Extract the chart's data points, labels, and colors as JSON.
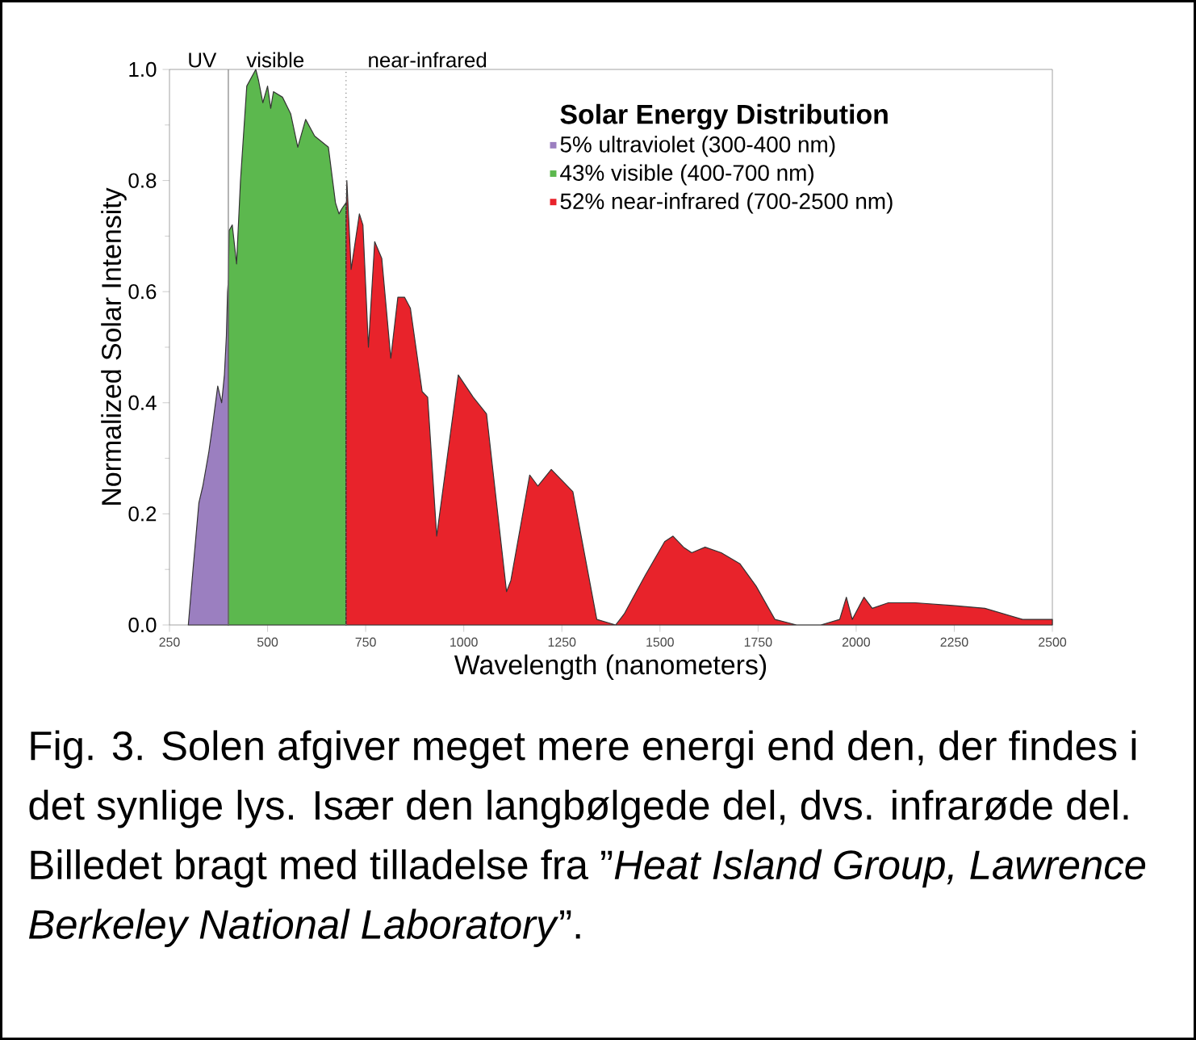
{
  "chart_data": {
    "type": "area",
    "xlabel": "Wavelength (nanometers)",
    "ylabel": "Normalized Solar Intensity",
    "legend_title": "Solar Energy Distribution",
    "legend": "top right",
    "xlim": [
      250,
      2500
    ],
    "ylim": [
      0,
      1.0
    ],
    "xticks": [
      250,
      500,
      750,
      1000,
      1250,
      1500,
      1750,
      2000,
      2250,
      2500
    ],
    "yticks": [
      {
        "value": 0,
        "label": "0.0"
      },
      {
        "value": 0.2,
        "label": "0.2"
      },
      {
        "value": 0.4,
        "label": "0.4"
      },
      {
        "value": 0.6,
        "label": "0.6"
      },
      {
        "value": 0.8,
        "label": "0.8"
      },
      {
        "value": 1.0,
        "label": "1.0"
      }
    ],
    "ref_lines": [
      {
        "axis": "x",
        "value": 400,
        "color": "#808080",
        "line_style": "solid"
      },
      {
        "axis": "x",
        "value": 700,
        "color": "#808080",
        "line_style": "dotted"
      }
    ],
    "series": [
      {
        "name": "5% ultraviolet (300-400 nm)",
        "color": "#9b7fc0",
        "x": [
          298,
          310,
          325,
          335,
          350,
          360,
          373,
          383,
          390,
          395,
          398,
          400
        ],
        "values": [
          0,
          0.1,
          0.22,
          0.25,
          0.31,
          0.36,
          0.43,
          0.4,
          0.45,
          0.52,
          0.6,
          0.62
        ]
      },
      {
        "name": "43% visible (400-700 nm)",
        "color": "#5cb84e",
        "x": [
          400,
          402,
          410,
          421,
          431,
          447,
          470,
          477,
          488,
          500,
          508,
          515,
          538,
          559,
          577,
          597,
          620,
          655,
          673,
          682,
          690,
          700
        ],
        "values": [
          0.62,
          0.71,
          0.72,
          0.65,
          0.8,
          0.97,
          1.0,
          0.98,
          0.94,
          0.97,
          0.93,
          0.96,
          0.95,
          0.92,
          0.86,
          0.91,
          0.88,
          0.86,
          0.76,
          0.74,
          0.75,
          0.76
        ]
      },
      {
        "name": "52% near-infrared (700-2500 nm)",
        "color": "#e8232b",
        "x": [
          700,
          702,
          713,
          734,
          743,
          757,
          773,
          791,
          814,
          832,
          849,
          864,
          894,
          908,
          931,
          986,
          1024,
          1058,
          1109,
          1120,
          1168,
          1189,
          1223,
          1278,
          1339,
          1387,
          1409,
          1463,
          1512,
          1533,
          1560,
          1581,
          1615,
          1656,
          1704,
          1745,
          1793,
          1848,
          1910,
          1958,
          1975,
          1990,
          2020,
          2041,
          2082,
          2150,
          2246,
          2328,
          2424,
          2500
        ],
        "values": [
          0.72,
          0.8,
          0.64,
          0.74,
          0.72,
          0.5,
          0.69,
          0.66,
          0.48,
          0.59,
          0.59,
          0.57,
          0.42,
          0.41,
          0.16,
          0.45,
          0.41,
          0.38,
          0.06,
          0.08,
          0.27,
          0.25,
          0.28,
          0.24,
          0.01,
          0,
          0.02,
          0.09,
          0.15,
          0.16,
          0.14,
          0.13,
          0.14,
          0.13,
          0.11,
          0.07,
          0.01,
          0,
          0,
          0.01,
          0.05,
          0.01,
          0.05,
          0.03,
          0.04,
          0.04,
          0.035,
          0.03,
          0.01,
          0.01
        ]
      }
    ],
    "annotations": [
      "UV",
      "visible",
      "near-infrared",
      "Fig. 3. Solen afgiver meget mere energi end den, der findes i det synlige lys. Især den langbølgede del, dvs. infrarøde del. Billedet bragt med tilladelse fra ”*Heat Island Group, Lawrence Berkeley National Laboratory*”."
    ]
  }
}
